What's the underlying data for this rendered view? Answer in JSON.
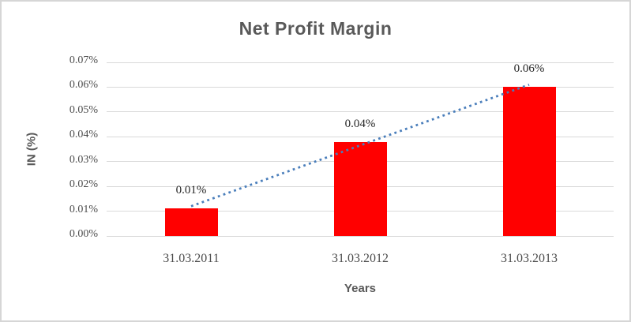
{
  "chart_data": {
    "type": "bar",
    "title": "Net Profit Margin",
    "xlabel": "Years",
    "ylabel": "IN (%)",
    "categories": [
      "31.03.2011",
      "31.03.2012",
      "31.03.2013"
    ],
    "values": [
      0.011,
      0.038,
      0.06
    ],
    "data_labels": [
      "0.01%",
      "0.04%",
      "0.06%"
    ],
    "y_ticks": [
      "0.00%",
      "0.01%",
      "0.02%",
      "0.03%",
      "0.04%",
      "0.05%",
      "0.06%",
      "0.07%"
    ],
    "ylim": [
      0,
      0.07
    ],
    "grid": true,
    "legend": "none",
    "bar_color": "#ff0000",
    "gridline_color": "#d9d9d9",
    "trendline": {
      "style": "dotted",
      "color": "#4a7ebb",
      "start_value": 0.012,
      "end_value": 0.061
    }
  }
}
